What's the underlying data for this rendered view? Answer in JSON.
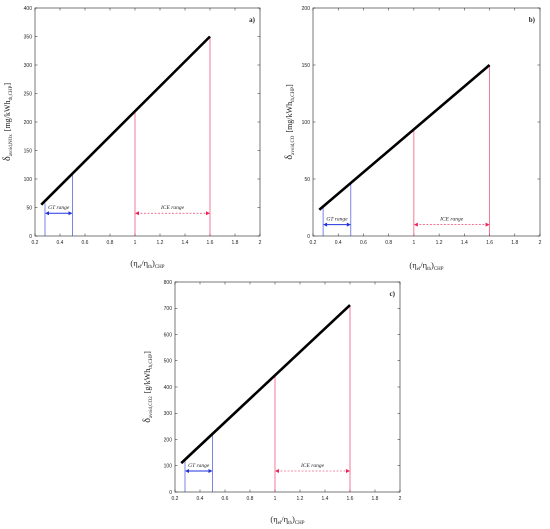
{
  "chart_data": [
    {
      "type": "line",
      "panel_label": "a)",
      "ylabel_main": "δ",
      "ylabel_sub": "avoid,NOx",
      "ylabel_unit_pre": "[mg/kWh",
      "ylabel_unit_sub": "th,CHP",
      "ylabel_unit_post": "]",
      "xlabel_main": "(η",
      "xlabel_sub1": "el",
      "xlabel_mid": "/η",
      "xlabel_sub2": "th",
      "xlabel_post": ")",
      "xlabel_sub3": "CHP",
      "xlim": [
        0.2,
        2
      ],
      "ylim": [
        0,
        400
      ],
      "xticks": [
        "0.2",
        "0.4",
        "0.6",
        "0.8",
        "1",
        "1.2",
        "1.4",
        "1.6",
        "1.8",
        "2"
      ],
      "yticks": [
        "0",
        "50",
        "100",
        "150",
        "200",
        "250",
        "300",
        "350",
        "400"
      ],
      "line": {
        "x": [
          0.25,
          1.6
        ],
        "y": [
          55,
          350
        ]
      },
      "gt_range": {
        "label": "GT range",
        "x": [
          0.28,
          0.5
        ],
        "y_top": [
          57,
          108
        ],
        "y_arrow": 40
      },
      "ice_range": {
        "label": "ICE range",
        "x": [
          1.0,
          1.6
        ],
        "y_top": [
          220,
          350
        ],
        "y_arrow": 40
      }
    },
    {
      "type": "line",
      "panel_label": "b)",
      "ylabel_main": "δ",
      "ylabel_sub": "avoid,CO",
      "ylabel_unit_pre": "[mg/kWh",
      "ylabel_unit_sub": "th,CHP",
      "ylabel_unit_post": "]",
      "xlabel_main": "(η",
      "xlabel_sub1": "el",
      "xlabel_mid": "/η",
      "xlabel_sub2": "th",
      "xlabel_post": ")",
      "xlabel_sub3": "CHP",
      "xlim": [
        0.2,
        2
      ],
      "ylim": [
        0,
        200
      ],
      "xticks": [
        "0.2",
        "0.4",
        "0.6",
        "0.8",
        "1",
        "1.2",
        "1.4",
        "1.6",
        "1.8",
        "2"
      ],
      "yticks": [
        "0",
        "50",
        "100",
        "150",
        "200"
      ],
      "line": {
        "x": [
          0.25,
          1.6
        ],
        "y": [
          23,
          150
        ]
      },
      "gt_range": {
        "label": "GT range",
        "x": [
          0.28,
          0.5
        ],
        "y_top": [
          26,
          47
        ],
        "y_arrow": 10
      },
      "ice_range": {
        "label": "ICE range",
        "x": [
          1.0,
          1.6
        ],
        "y_top": [
          94,
          150
        ],
        "y_arrow": 10
      }
    },
    {
      "type": "line",
      "panel_label": "c)",
      "ylabel_main": "δ",
      "ylabel_sub": "avoid,CO2",
      "ylabel_unit_pre": "[g/kWh",
      "ylabel_unit_sub": "th,CHP",
      "ylabel_unit_post": "]",
      "xlabel_main": "(η",
      "xlabel_sub1": "el",
      "xlabel_mid": "/η",
      "xlabel_sub2": "th",
      "xlabel_post": ")",
      "xlabel_sub3": "CHP",
      "xlim": [
        0.2,
        2
      ],
      "ylim": [
        0,
        800
      ],
      "xticks": [
        "0.2",
        "0.4",
        "0.6",
        "0.8",
        "1",
        "1.2",
        "1.4",
        "1.6",
        "1.8",
        "2"
      ],
      "yticks": [
        "0",
        "100",
        "200",
        "300",
        "400",
        "500",
        "600",
        "700",
        "800"
      ],
      "line": {
        "x": [
          0.25,
          1.6
        ],
        "y": [
          110,
          712
        ]
      },
      "gt_range": {
        "label": "GT range",
        "x": [
          0.28,
          0.5
        ],
        "y_top": [
          120,
          220
        ],
        "y_arrow": 80
      },
      "ice_range": {
        "label": "ICE range",
        "x": [
          1.0,
          1.6
        ],
        "y_top": [
          447,
          712
        ],
        "y_arrow": 80
      }
    }
  ],
  "colors": {
    "line": "#000000",
    "gt": "#2233dd",
    "ice": "#ee2255",
    "axis": "#222222"
  }
}
